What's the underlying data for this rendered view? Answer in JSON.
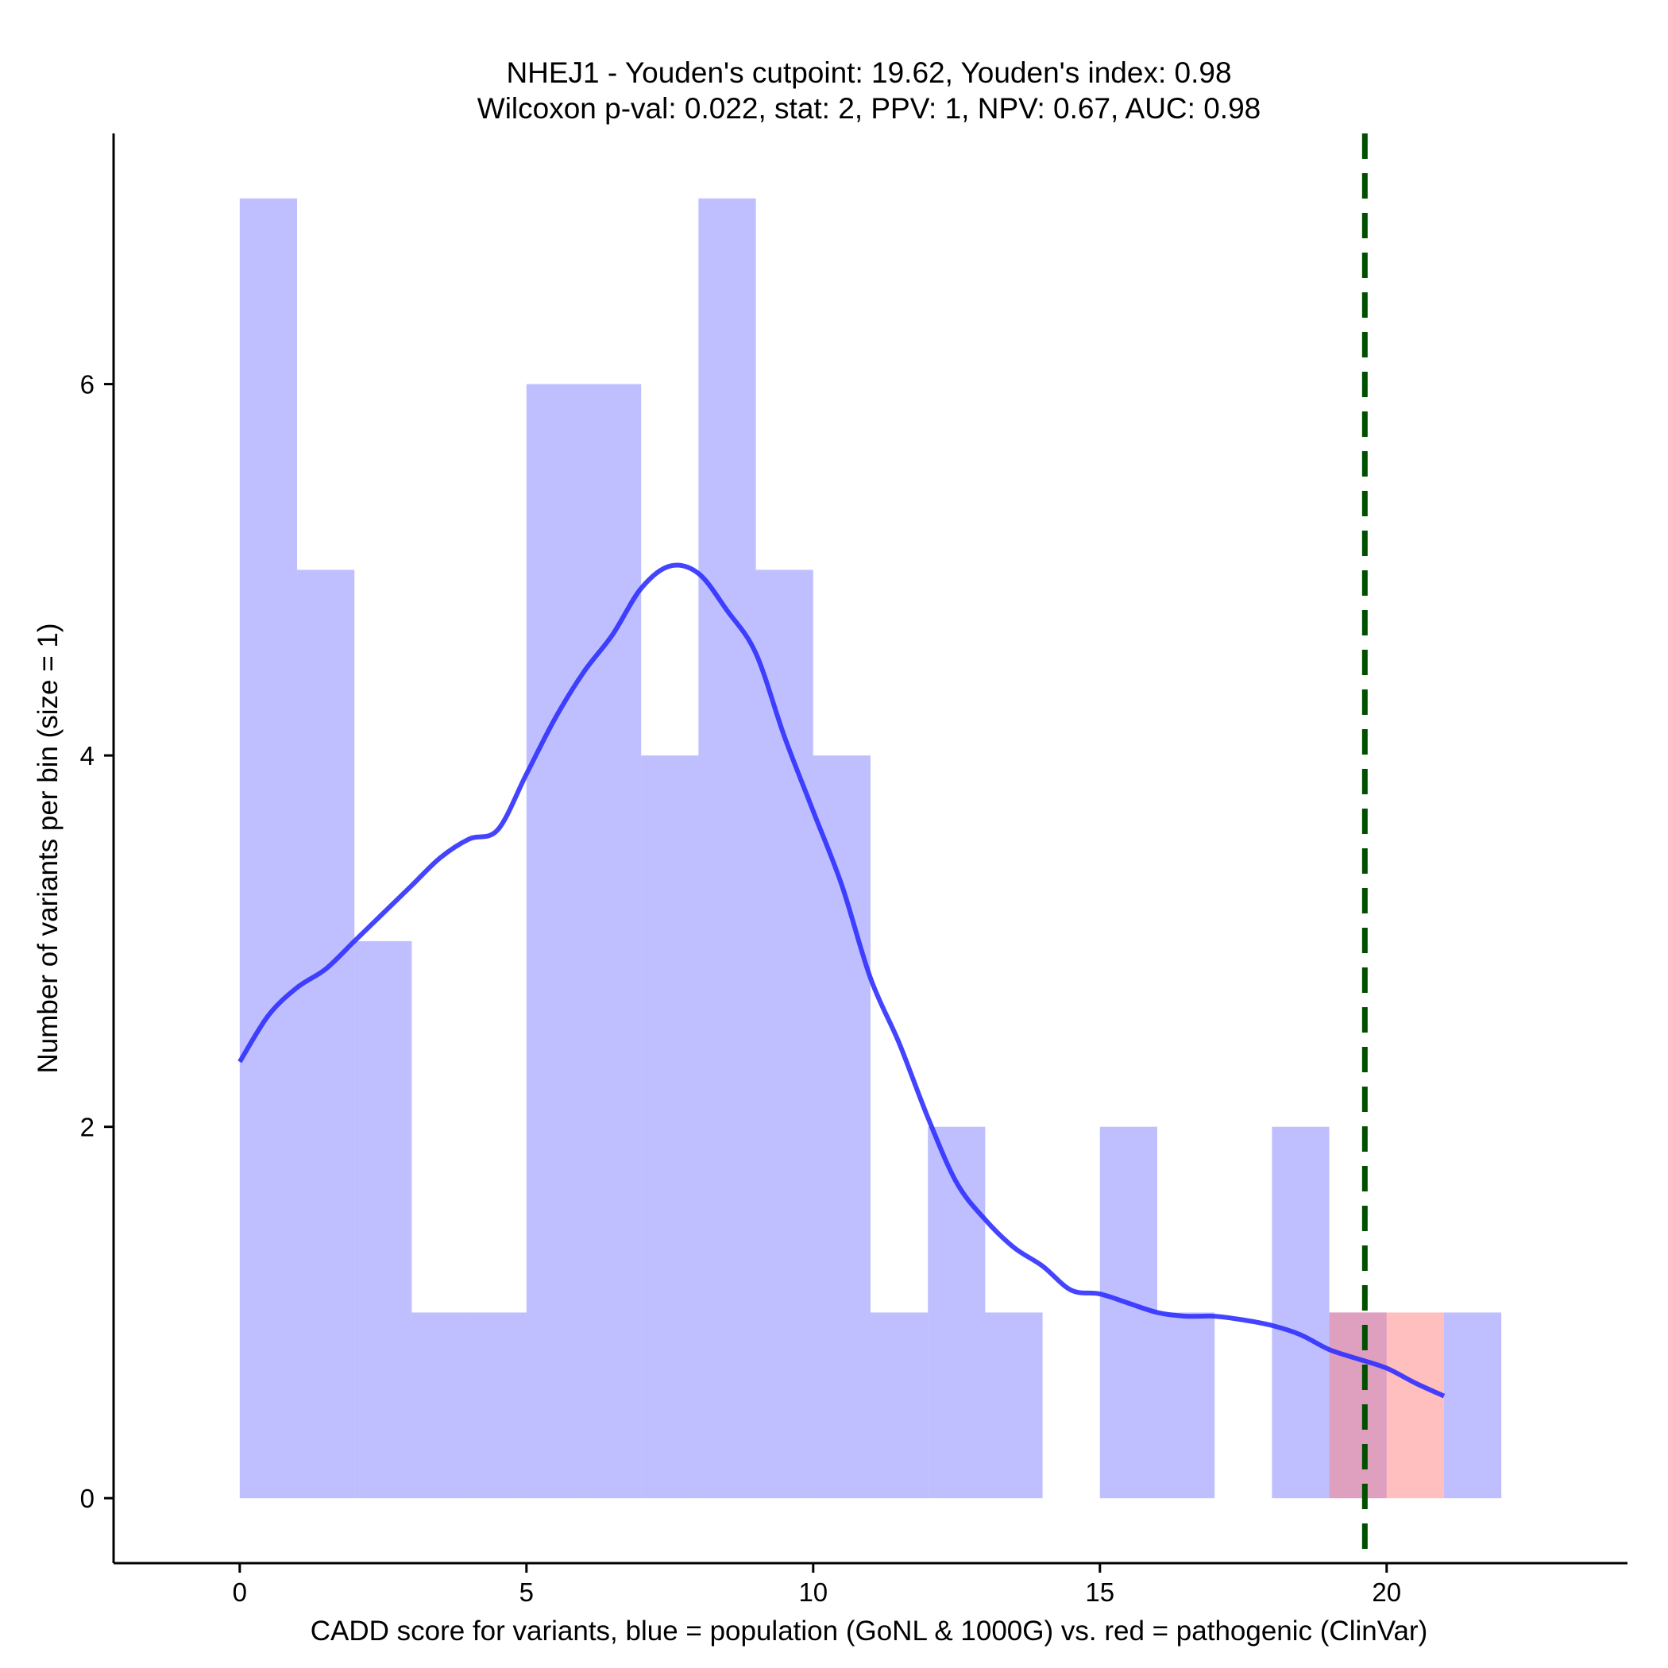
{
  "chart_data": {
    "type": "bar",
    "title": "NHEJ1 - Youden's cutpoint: 19.62, Youden's index: 0.98",
    "subtitle": "Wilcoxon p-val: 0.022, stat: 2, PPV: 1, NPV: 0.67, AUC: 0.98",
    "xlabel": "CADD score for variants, blue = population (GoNL & 1000G) vs. red = pathogenic (ClinVar)",
    "ylabel": "Number of variants per bin (size = 1)",
    "xlim": [
      -2.2,
      24.2
    ],
    "ylim": [
      -0.35,
      7.35
    ],
    "xticks": [
      0,
      5,
      10,
      15,
      20
    ],
    "yticks": [
      0,
      2,
      4,
      6
    ],
    "bin_width": 1,
    "series": [
      {
        "name": "population (GoNL & 1000G)",
        "color": "#8080ff",
        "opacity": 0.5,
        "bin_starts": [
          0,
          1,
          2,
          3,
          4,
          5,
          6,
          7,
          8,
          9,
          10,
          11,
          12,
          13,
          14,
          15,
          16,
          17,
          18,
          19,
          20,
          21
        ],
        "values": [
          7,
          5,
          3,
          1,
          1,
          6,
          6,
          4,
          7,
          5,
          4,
          1,
          2,
          1,
          0,
          2,
          1,
          0,
          2,
          1,
          0,
          1
        ]
      },
      {
        "name": "pathogenic (ClinVar)",
        "color": "#ff8080",
        "opacity": 0.5,
        "bin_starts": [
          19,
          20
        ],
        "values": [
          1,
          1
        ]
      }
    ],
    "density_curve": {
      "name": "population density (scaled)",
      "color": "#3030ff",
      "x": [
        0,
        0.5,
        1,
        1.5,
        2,
        2.5,
        3,
        3.5,
        4,
        4.5,
        5,
        5.5,
        6,
        6.5,
        7,
        7.5,
        8,
        8.5,
        9,
        9.5,
        10,
        10.5,
        11,
        11.5,
        12,
        12.5,
        13,
        13.5,
        14,
        14.5,
        15,
        15.5,
        16,
        16.5,
        17,
        17.5,
        18,
        18.5,
        19,
        19.5,
        20,
        20.5,
        21
      ],
      "y": [
        2.35,
        2.6,
        2.75,
        2.85,
        3.0,
        3.15,
        3.3,
        3.45,
        3.55,
        3.6,
        3.9,
        4.2,
        4.45,
        4.65,
        4.9,
        5.02,
        4.98,
        4.78,
        4.55,
        4.1,
        3.7,
        3.3,
        2.8,
        2.45,
        2.05,
        1.7,
        1.5,
        1.35,
        1.25,
        1.12,
        1.1,
        1.05,
        1.0,
        0.98,
        0.98,
        0.96,
        0.93,
        0.88,
        0.8,
        0.75,
        0.7,
        0.62,
        0.55
      ]
    },
    "cutpoint": {
      "x": 19.62,
      "color": "#005000",
      "style": "dashed"
    }
  }
}
